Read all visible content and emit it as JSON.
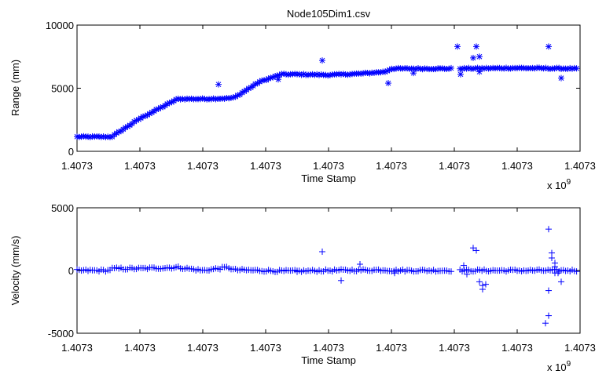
{
  "figure": {
    "title": "Node105Dim1.csv"
  },
  "chart_data": [
    {
      "type": "scatter",
      "title": "Node105Dim1.csv",
      "xlabel": "Time Stamp",
      "ylabel": "Range (mm)",
      "x_tick_labels": [
        "1.4073",
        "1.4073",
        "1.4073",
        "1.4073",
        "1.4073",
        "1.4073",
        "1.4073",
        "1.4073",
        "1.4073"
      ],
      "x_exponent_label": "x 10",
      "x_exponent_power": "9",
      "y_tick_labels": [
        "0",
        "5000",
        "10000"
      ],
      "xlim": [
        0,
        8
      ],
      "ylim": [
        0,
        10000
      ],
      "marker": "*",
      "color": "#0000ff",
      "grid": false,
      "series": [
        {
          "dense_segments": [
            {
              "x": [
                0.0,
                0.55,
                1.0,
                1.6,
                2.0,
                2.4,
                2.5,
                2.9,
                3.25,
                3.5,
                4.0,
                4.5,
                4.9,
                5.0,
                6.0,
                7.0,
                7.95
              ],
              "y": [
                1150,
                1150,
                2600,
                4150,
                4150,
                4200,
                4250,
                5500,
                6100,
                6100,
                6050,
                6150,
                6300,
                6550,
                6550,
                6600,
                6550
              ],
              "step": 0.035,
              "jitter": 90
            }
          ],
          "outliers_x": [
            2.25,
            3.2,
            3.9,
            4.95,
            5.35,
            6.3,
            6.4,
            6.4,
            6.35,
            6.05,
            6.1,
            7.5,
            7.7
          ],
          "outliers_y": [
            5300,
            5700,
            7200,
            5400,
            6200,
            7400,
            6300,
            7500,
            8300,
            8300,
            6100,
            8300,
            5800
          ]
        }
      ]
    },
    {
      "type": "scatter",
      "xlabel": "Time Stamp",
      "ylabel": "Velocity (mm/s)",
      "x_tick_labels": [
        "1.4073",
        "1.4073",
        "1.4073",
        "1.4073",
        "1.4073",
        "1.4073",
        "1.4073",
        "1.4073",
        "1.4073"
      ],
      "x_exponent_label": "x 10",
      "x_exponent_power": "9",
      "y_tick_labels": [
        "-5000",
        "0",
        "5000"
      ],
      "xlim": [
        0,
        8
      ],
      "ylim": [
        -5000,
        5000
      ],
      "marker": "+",
      "color": "#0000ff",
      "grid": false,
      "series": [
        {
          "dense_segments": [
            {
              "x": [
                0.0,
                0.5,
                0.55,
                1.0,
                1.6,
                2.0,
                2.4,
                2.5,
                2.9,
                3.25,
                3.5,
                4.0,
                4.9,
                5.0,
                7.95
              ],
              "y": [
                0,
                0,
                150,
                150,
                250,
                0,
                250,
                50,
                0,
                -50,
                -50,
                0,
                50,
                0,
                0
              ],
              "step": 0.035,
              "jitter": 170
            }
          ],
          "outliers_x": [
            3.9,
            4.2,
            3.5,
            4.5,
            5.05,
            6.3,
            6.35,
            6.4,
            6.45,
            6.45,
            6.5,
            6.2,
            6.15,
            7.5,
            7.55,
            7.55,
            7.6,
            7.6,
            7.5,
            7.5,
            7.45,
            7.7,
            7.65,
            7.6
          ],
          "outliers_y": [
            1500,
            -800,
            -100,
            500,
            -200,
            1800,
            1600,
            -900,
            -1200,
            -1500,
            -1100,
            -300,
            400,
            3300,
            1400,
            1000,
            600,
            -200,
            -1600,
            -3600,
            -4200,
            -900,
            -200,
            300
          ]
        }
      ]
    }
  ]
}
